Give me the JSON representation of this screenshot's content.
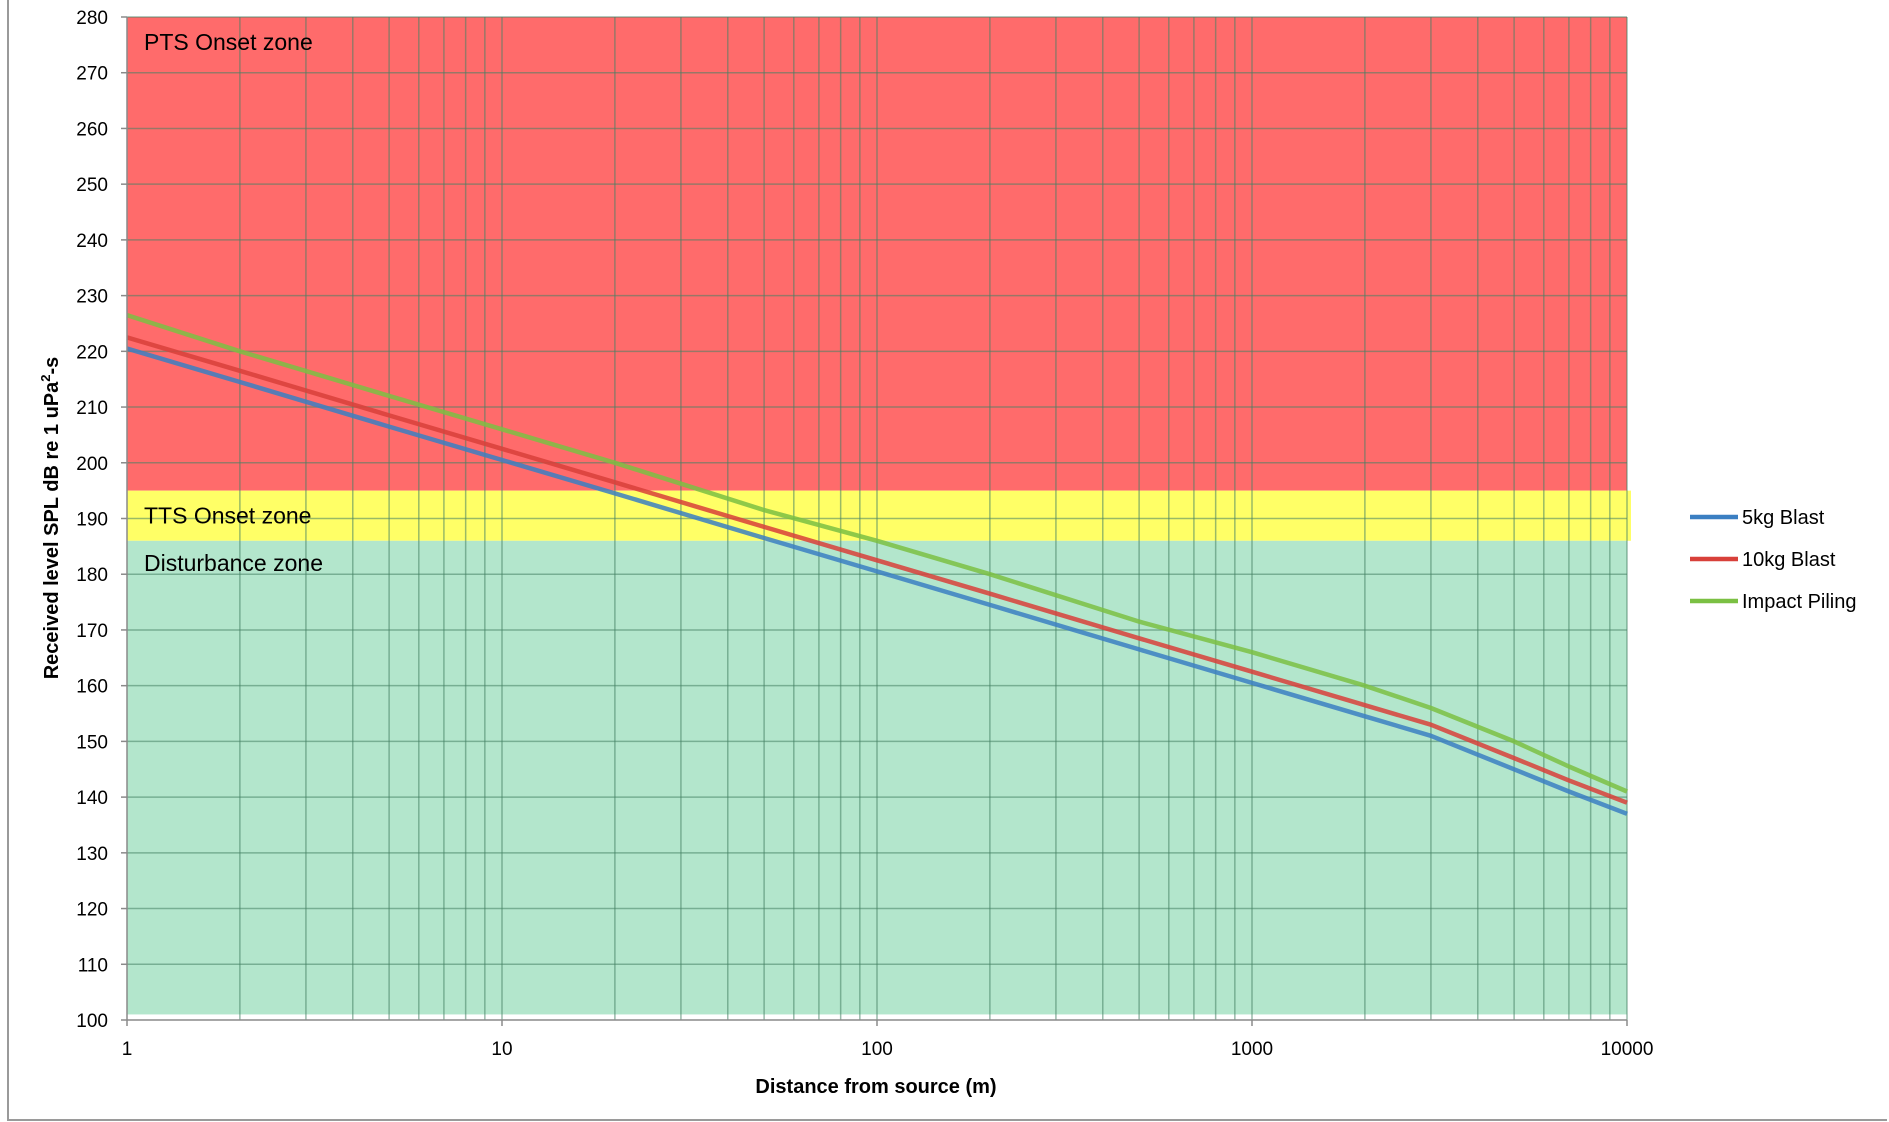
{
  "chart_data": {
    "type": "line",
    "title": "",
    "xlabel": "Distance from source (m)",
    "ylabel": "Received level SPL dB re 1 uPa²-s",
    "ylabel_parts": {
      "before": "Received level SPL dB re 1 uPa",
      "sup": "2",
      "after": "-s"
    },
    "x_scale": "log",
    "xlim": [
      1,
      10000
    ],
    "ylim": [
      100,
      280
    ],
    "x_ticks": [
      "1",
      "10",
      "100",
      "1000",
      "10000"
    ],
    "y_ticks": [
      "100",
      "110",
      "120",
      "130",
      "140",
      "150",
      "160",
      "170",
      "180",
      "190",
      "200",
      "210",
      "220",
      "230",
      "240",
      "250",
      "260",
      "270",
      "280"
    ],
    "grid": true,
    "legend_position": "right",
    "zones": [
      {
        "name": "PTS Onset zone",
        "from": 195,
        "to": 280,
        "color": "#ff6b6b"
      },
      {
        "name": "TTS Onset zone",
        "from": 186,
        "to": 195,
        "color": "#ffff66"
      },
      {
        "name": "Disturbance zone",
        "from": 101,
        "to": 186,
        "color": "#b3e6cc"
      }
    ],
    "x": [
      1,
      2,
      5,
      10,
      20,
      50,
      100,
      200,
      500,
      1000,
      2000,
      3000,
      5000,
      7000,
      10000
    ],
    "series": [
      {
        "name": "5kg Blast",
        "color": "#3b7fc2",
        "values": [
          220.5,
          214.5,
          206.5,
          200.5,
          194.5,
          186.5,
          180.5,
          174.5,
          166.5,
          160.5,
          154.5,
          151,
          145,
          141,
          137
        ]
      },
      {
        "name": "10kg Blast",
        "color": "#d8403a",
        "values": [
          222.5,
          216.5,
          208.5,
          202.5,
          196.5,
          188.5,
          182.5,
          176.5,
          168.5,
          162.5,
          156.5,
          153,
          147,
          143,
          139
        ]
      },
      {
        "name": "Impact Piling",
        "color": "#7bc043",
        "values": [
          226.5,
          220,
          212,
          206,
          200,
          191.5,
          186,
          180,
          171.5,
          166,
          160,
          156,
          150,
          145.5,
          141
        ]
      }
    ]
  }
}
